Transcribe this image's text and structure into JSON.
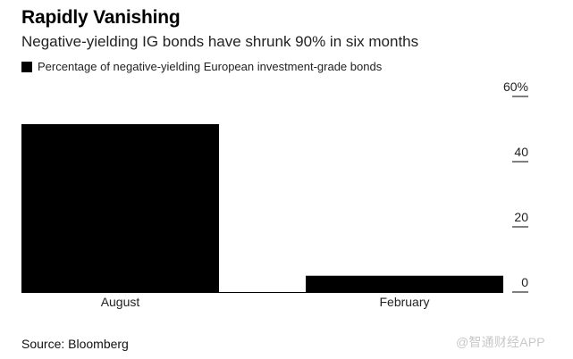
{
  "chart_data": {
    "type": "bar",
    "title": "Rapidly Vanishing",
    "subtitle": "Negative-yielding IG bonds have shrunk 90% in six months",
    "legend": [
      {
        "label": "Percentage of negative-yielding European investment-grade bonds",
        "color": "#000000"
      }
    ],
    "legend_position": "top-left",
    "categories": [
      "August",
      "February"
    ],
    "series": [
      {
        "name": "Percentage of negative-yielding European investment-grade bonds",
        "values": [
          51.5,
          5
        ]
      }
    ],
    "ylim": [
      0,
      60
    ],
    "y_axis_position": "right",
    "y_ticks": [
      {
        "value": 0,
        "label": "0"
      },
      {
        "value": 20,
        "label": "20"
      },
      {
        "value": 40,
        "label": "40"
      },
      {
        "value": 60,
        "label": "60%"
      }
    ],
    "bar_color": "#000000",
    "grid": false
  },
  "source": "Source: Bloomberg",
  "watermark": "@智通财经APP"
}
